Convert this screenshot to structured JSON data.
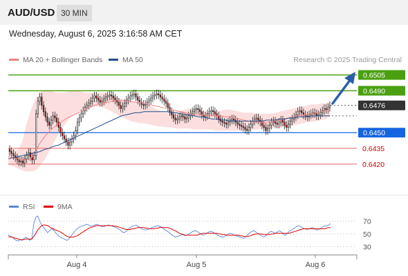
{
  "header": {
    "pair": "AUD/USD",
    "timeframe": "30 MIN"
  },
  "datetime": "Wednesday, August 6, 2025 3:16:58 AM CET",
  "credit": "Research © 2025 Trading Central",
  "legend_main": [
    {
      "label": "MA 20 + Bollinger Bands",
      "color": "#f08080"
    },
    {
      "label": "MA 50",
      "color": "#1f4e8c"
    }
  ],
  "legend_rsi": [
    {
      "label": "RSI",
      "color": "#5b84d6"
    },
    {
      "label": "9MA",
      "color": "#e00000"
    }
  ],
  "colors": {
    "resistance": "#4aa010",
    "support_key": "#1565e0",
    "support_minor": "#ee6060",
    "price_label": "#333333",
    "candle_up": "#ffffff",
    "candle_down": "#d01010",
    "arrow": "#2a5fa8",
    "band_fill": "#fbd8d8"
  },
  "chart_data": [
    {
      "type": "candlestick",
      "title": "AUD/USD 30 MIN",
      "x_ticks": [
        "Aug 4",
        "Aug 5",
        "Aug 6"
      ],
      "ylim": [
        0.6412,
        0.6512
      ],
      "levels": [
        {
          "value": 0.6505,
          "label": "0.6505",
          "kind": "resistance"
        },
        {
          "value": 0.649,
          "label": "0.6490",
          "kind": "resistance"
        },
        {
          "value": 0.6476,
          "label": "0.6476",
          "kind": "last"
        },
        {
          "value": 0.645,
          "label": "0.6450",
          "kind": "pivot"
        },
        {
          "value": 0.6435,
          "label": "0.6435",
          "kind": "support"
        },
        {
          "value": 0.642,
          "label": "0.6420",
          "kind": "support"
        }
      ],
      "close_series": [
        0.6432,
        0.643,
        0.6428,
        0.6426,
        0.6424,
        0.6422,
        0.6423,
        0.6421,
        0.6425,
        0.6428,
        0.6431,
        0.6427,
        0.6424,
        0.6428,
        0.6468,
        0.648,
        0.6484,
        0.6476,
        0.647,
        0.6465,
        0.646,
        0.6457,
        0.6462,
        0.6466,
        0.6464,
        0.646,
        0.6455,
        0.645,
        0.6447,
        0.6444,
        0.6441,
        0.6438,
        0.6441,
        0.6444,
        0.6447,
        0.6452,
        0.646,
        0.6464,
        0.6468,
        0.6471,
        0.6474,
        0.6476,
        0.6478,
        0.648,
        0.6483,
        0.6485,
        0.6483,
        0.6481,
        0.6479,
        0.648,
        0.6482,
        0.6484,
        0.6485,
        0.6486,
        0.6485,
        0.6483,
        0.6481,
        0.6479,
        0.6476,
        0.6473,
        0.6475,
        0.6478,
        0.6481,
        0.6483,
        0.6485,
        0.6486,
        0.6487,
        0.6484,
        0.6481,
        0.6479,
        0.6477,
        0.6476,
        0.6477,
        0.6479,
        0.6481,
        0.6483,
        0.6485,
        0.6486,
        0.6487,
        0.6486,
        0.6484,
        0.6482,
        0.648,
        0.6478,
        0.6474,
        0.647,
        0.6467,
        0.6464,
        0.6462,
        0.6463,
        0.6465,
        0.6466,
        0.6465,
        0.6463,
        0.6464,
        0.6466,
        0.6468,
        0.647,
        0.6472,
        0.6473,
        0.6472,
        0.647,
        0.6467,
        0.6465,
        0.6466,
        0.6468,
        0.647,
        0.6471,
        0.647,
        0.6468,
        0.6466,
        0.6463,
        0.6461,
        0.646,
        0.6459,
        0.6458,
        0.646,
        0.6462,
        0.6463,
        0.6462,
        0.646,
        0.6458,
        0.6457,
        0.6456,
        0.6455,
        0.6453,
        0.6452,
        0.6455,
        0.6458,
        0.6461,
        0.6463,
        0.6464,
        0.6462,
        0.646,
        0.6457,
        0.6455,
        0.6452,
        0.6454,
        0.6457,
        0.646,
        0.6461,
        0.6459,
        0.6458,
        0.646,
        0.6462,
        0.646,
        0.6457,
        0.6455,
        0.6458,
        0.6461,
        0.6463,
        0.6465,
        0.6467,
        0.647,
        0.6471,
        0.6469,
        0.6467,
        0.6466,
        0.6465,
        0.6467,
        0.6468,
        0.6469,
        0.6468,
        0.6466,
        0.6467,
        0.6469,
        0.6471,
        0.6473,
        0.6472,
        0.6474,
        0.6476
      ],
      "ma20": [
        0.6427,
        0.6426,
        0.6425,
        0.6424,
        0.6424,
        0.6425,
        0.6432,
        0.644,
        0.6446,
        0.6451,
        0.6455,
        0.6458,
        0.6461,
        0.6464,
        0.6466,
        0.6468,
        0.647,
        0.6472,
        0.6474,
        0.6476,
        0.6477,
        0.6478,
        0.6479,
        0.648,
        0.6481,
        0.6481,
        0.648,
        0.648,
        0.6479,
        0.6479,
        0.6478,
        0.6477,
        0.6476,
        0.6475,
        0.6474,
        0.6473,
        0.6472,
        0.6471,
        0.647,
        0.6469,
        0.6468,
        0.6467,
        0.6467,
        0.6467,
        0.6466,
        0.6466,
        0.6466,
        0.6466,
        0.6465,
        0.6465,
        0.6464,
        0.6463,
        0.6462,
        0.6461,
        0.646,
        0.646,
        0.646,
        0.646,
        0.646,
        0.6461,
        0.6462,
        0.6463,
        0.6464,
        0.6465,
        0.6466,
        0.6467,
        0.6467,
        0.6468,
        0.6469,
        0.647,
        0.6471,
        0.6472
      ],
      "bb_upper": [
        0.6435,
        0.6434,
        0.6433,
        0.644,
        0.6458,
        0.6472,
        0.6482,
        0.6488,
        0.649,
        0.649,
        0.6489,
        0.6488,
        0.6488,
        0.6489,
        0.649,
        0.649,
        0.6489,
        0.6488,
        0.6488,
        0.6488,
        0.6488,
        0.6488,
        0.6487,
        0.6486,
        0.6484,
        0.6482,
        0.6481,
        0.648,
        0.6479,
        0.6478,
        0.6477,
        0.6476,
        0.6474,
        0.6472,
        0.647,
        0.6469,
        0.6469,
        0.647,
        0.6471,
        0.6472,
        0.6473,
        0.6472,
        0.6471,
        0.647,
        0.6469,
        0.6469,
        0.647,
        0.6471,
        0.6472,
        0.6472,
        0.6471,
        0.647,
        0.6469,
        0.6469,
        0.6469,
        0.6468,
        0.6468,
        0.6468,
        0.6468,
        0.6469,
        0.647,
        0.6471,
        0.6472,
        0.6473,
        0.6474,
        0.6475,
        0.6476,
        0.6477,
        0.6477,
        0.6478,
        0.6478,
        0.6479
      ],
      "bb_lower": [
        0.642,
        0.6418,
        0.6416,
        0.6414,
        0.6413,
        0.6413,
        0.6414,
        0.6418,
        0.6424,
        0.6432,
        0.644,
        0.6448,
        0.6455,
        0.6461,
        0.6465,
        0.6468,
        0.6471,
        0.6473,
        0.6474,
        0.6475,
        0.6475,
        0.6474,
        0.6472,
        0.647,
        0.6467,
        0.6465,
        0.6463,
        0.6461,
        0.646,
        0.6459,
        0.6459,
        0.6458,
        0.6457,
        0.6456,
        0.6456,
        0.6455,
        0.6455,
        0.6454,
        0.6454,
        0.6454,
        0.6454,
        0.6453,
        0.6453,
        0.6453,
        0.6453,
        0.6453,
        0.6452,
        0.6452,
        0.6452,
        0.6452,
        0.6452,
        0.6452,
        0.6452,
        0.6453,
        0.6453,
        0.6453,
        0.6454,
        0.6454,
        0.6454,
        0.6454,
        0.6455,
        0.6455,
        0.6456,
        0.6457,
        0.6458,
        0.6459,
        0.646,
        0.646,
        0.6461,
        0.6462,
        0.6463,
        0.6465
      ],
      "ma50": [
        0.6425,
        0.6426,
        0.6427,
        0.6428,
        0.6429,
        0.643,
        0.6431,
        0.6432,
        0.6434,
        0.6435,
        0.6437,
        0.6438,
        0.644,
        0.6442,
        0.6444,
        0.6446,
        0.6448,
        0.645,
        0.6452,
        0.6454,
        0.6456,
        0.6458,
        0.646,
        0.6462,
        0.6464,
        0.6466,
        0.6467,
        0.6468,
        0.6469,
        0.6469,
        0.647,
        0.647,
        0.647,
        0.647,
        0.647,
        0.647,
        0.6469,
        0.6469,
        0.6468,
        0.6467,
        0.6467,
        0.6466,
        0.6465,
        0.6465,
        0.6464,
        0.6463,
        0.6463,
        0.6462,
        0.6462,
        0.6461,
        0.6461,
        0.6461,
        0.6461,
        0.6461,
        0.6461,
        0.6461,
        0.6461,
        0.6462,
        0.6462,
        0.6462,
        0.6463,
        0.6463,
        0.6464,
        0.6464,
        0.6465,
        0.6465,
        0.6465,
        0.6466,
        0.6466,
        0.6466,
        0.6466,
        0.6466
      ]
    },
    {
      "type": "line",
      "title": "RSI",
      "y_ticks": [
        "70",
        "50",
        "30"
      ],
      "ylim": [
        20,
        90
      ],
      "series": [
        {
          "name": "RSI",
          "values": [
            48,
            47,
            45,
            42,
            40,
            39,
            41,
            40,
            43,
            45,
            42,
            40,
            43,
            66,
            76,
            78,
            70,
            64,
            60,
            56,
            52,
            55,
            58,
            56,
            52,
            49,
            46,
            44,
            43,
            41,
            40,
            43,
            47,
            51,
            55,
            58,
            60,
            62,
            63,
            64,
            65,
            64,
            62,
            63,
            64,
            65,
            64,
            62,
            61,
            62,
            63,
            64,
            63,
            62,
            61,
            60,
            58,
            56,
            53,
            52,
            54,
            57,
            60,
            62,
            63,
            64,
            62,
            60,
            58,
            57,
            56,
            57,
            58,
            60,
            61,
            62,
            63,
            62,
            61,
            58,
            56,
            54,
            52,
            49,
            47,
            45,
            46,
            47,
            48,
            49,
            47,
            48,
            50,
            52,
            54,
            55,
            54,
            52,
            50,
            48,
            49,
            51,
            53,
            54,
            53,
            51,
            49,
            47,
            46,
            45,
            46,
            48,
            50,
            51,
            50,
            48,
            47,
            46,
            45,
            44,
            43,
            46,
            49,
            52,
            54,
            55,
            53,
            51,
            49,
            47,
            45,
            47,
            50,
            53,
            54,
            52,
            51,
            53,
            55,
            53,
            50,
            48,
            51,
            54,
            56,
            58,
            60,
            62,
            63,
            61,
            59,
            58,
            57,
            58,
            59,
            60,
            58,
            56,
            57,
            59,
            61,
            63,
            62,
            64,
            66
          ]
        },
        {
          "name": "9MA",
          "values": [
            46,
            45,
            45,
            44,
            43,
            42,
            41,
            41,
            41,
            42,
            42,
            42,
            42,
            46,
            51,
            56,
            60,
            63,
            64,
            64,
            63,
            61,
            59,
            58,
            56,
            55,
            54,
            52,
            50,
            48,
            46,
            45,
            45,
            45,
            46,
            47,
            49,
            51,
            53,
            55,
            57,
            59,
            60,
            61,
            62,
            63,
            63,
            63,
            63,
            63,
            63,
            63,
            63,
            63,
            62,
            62,
            61,
            60,
            59,
            58,
            57,
            57,
            57,
            58,
            58,
            59,
            60,
            60,
            60,
            60,
            59,
            59,
            58,
            58,
            58,
            59,
            59,
            60,
            60,
            60,
            60,
            60,
            59,
            58,
            56,
            55,
            53,
            51,
            50,
            49,
            48,
            48,
            48,
            48,
            48,
            48,
            48,
            49,
            50,
            51,
            51,
            51,
            51,
            51,
            51,
            51,
            51,
            50,
            50,
            49,
            49,
            48,
            48,
            48,
            48,
            48,
            48,
            48,
            47,
            47,
            46,
            46,
            46,
            47,
            48,
            49,
            50,
            50,
            50,
            50,
            49,
            49,
            49,
            49,
            50,
            50,
            51,
            51,
            51,
            51,
            51,
            51,
            51,
            51,
            52,
            53,
            54,
            55,
            56,
            57,
            58,
            58,
            58,
            58,
            58,
            58,
            58,
            58,
            58,
            58,
            58,
            58,
            59,
            60,
            60
          ]
        }
      ]
    }
  ]
}
